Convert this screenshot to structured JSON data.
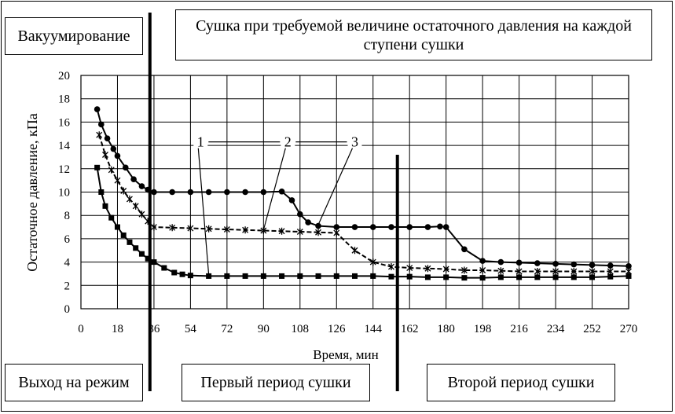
{
  "labels": {
    "title": "Сушка при требуемой величине остаточного давления на каждой ступени сушки",
    "phase_vacuum": "Вакуумирование",
    "phase_startup": "Выход на режим",
    "phase_first": "Первый период сушки",
    "phase_second": "Второй период сушки"
  },
  "chart_data": {
    "type": "line",
    "title": "Сушка при требуемой величине остаточного давления на каждой ступени сушки",
    "xlabel": "Время, мин",
    "ylabel": "Остаточное давление, кПа",
    "xlim": [
      0,
      270
    ],
    "ylim": [
      0,
      20
    ],
    "xticks": [
      0,
      18,
      36,
      54,
      72,
      90,
      108,
      126,
      144,
      162,
      180,
      198,
      216,
      234,
      252,
      270
    ],
    "yticks": [
      0,
      2,
      4,
      6,
      8,
      10,
      12,
      14,
      16,
      18,
      20
    ],
    "grid": true,
    "legend": "none",
    "phase_boundaries": [
      34,
      156
    ],
    "series": [
      {
        "name": "1",
        "marker": "square",
        "line": "solid",
        "x": [
          8,
          10,
          12,
          15,
          18,
          21,
          24,
          27,
          30,
          33,
          36,
          41,
          46,
          50,
          54,
          63,
          72,
          81,
          90,
          99,
          108,
          117,
          126,
          135,
          144,
          153,
          162,
          171,
          180,
          189,
          198,
          207,
          216,
          225,
          234,
          243,
          252,
          261,
          270
        ],
        "y": [
          12.1,
          10,
          8.8,
          7.8,
          7,
          6.3,
          5.7,
          5.2,
          4.7,
          4.3,
          4,
          3.5,
          3.1,
          2.95,
          2.85,
          2.8,
          2.8,
          2.8,
          2.8,
          2.8,
          2.8,
          2.8,
          2.8,
          2.8,
          2.8,
          2.75,
          2.75,
          2.7,
          2.7,
          2.65,
          2.65,
          2.7,
          2.7,
          2.7,
          2.7,
          2.7,
          2.7,
          2.75,
          2.8
        ]
      },
      {
        "name": "2",
        "marker": "star",
        "line": "dashed",
        "x": [
          9,
          12,
          15,
          18,
          21,
          24,
          27,
          30,
          33,
          36,
          45,
          54,
          63,
          72,
          81,
          90,
          99,
          108,
          117,
          126,
          135,
          144,
          153,
          162,
          171,
          180,
          189,
          198,
          207,
          216,
          225,
          234,
          243,
          252,
          261,
          270
        ],
        "y": [
          14.9,
          13.2,
          11.9,
          11,
          10.1,
          9.4,
          8.8,
          8.1,
          7.5,
          7,
          6.95,
          6.9,
          6.85,
          6.8,
          6.75,
          6.7,
          6.65,
          6.6,
          6.55,
          6.5,
          5,
          4,
          3.6,
          3.5,
          3.45,
          3.4,
          3.3,
          3.3,
          3.25,
          3.2,
          3.2,
          3.2,
          3.2,
          3.2,
          3.2,
          3.2
        ]
      },
      {
        "name": "3",
        "marker": "circle",
        "line": "solid",
        "x": [
          8,
          10,
          13,
          16,
          18,
          22,
          26,
          30,
          33,
          36,
          45,
          54,
          63,
          72,
          81,
          90,
          99,
          104,
          108,
          112,
          117,
          126,
          135,
          144,
          153,
          162,
          171,
          177,
          180,
          189,
          198,
          207,
          216,
          225,
          234,
          243,
          252,
          261,
          270
        ],
        "y": [
          17.1,
          15.8,
          14.6,
          13.7,
          13.1,
          12.1,
          11.1,
          10.5,
          10.2,
          10,
          10,
          10,
          10,
          10,
          10,
          10,
          10.05,
          9.3,
          8.1,
          7.4,
          7.1,
          7,
          7,
          7,
          7,
          7,
          7,
          7.05,
          7,
          5.1,
          4.1,
          4,
          3.95,
          3.9,
          3.85,
          3.8,
          3.75,
          3.7,
          3.65
        ]
      }
    ],
    "annotations": [
      {
        "label": "1",
        "tx": 59,
        "ty": 14.3,
        "ax": 63,
        "ay": 2.9
      },
      {
        "label": "2",
        "tx": 102,
        "ty": 14.3,
        "ax": 90,
        "ay": 6.75
      },
      {
        "label": "3",
        "tx": 135,
        "ty": 14.3,
        "ax": 117,
        "ay": 7.2
      }
    ]
  }
}
